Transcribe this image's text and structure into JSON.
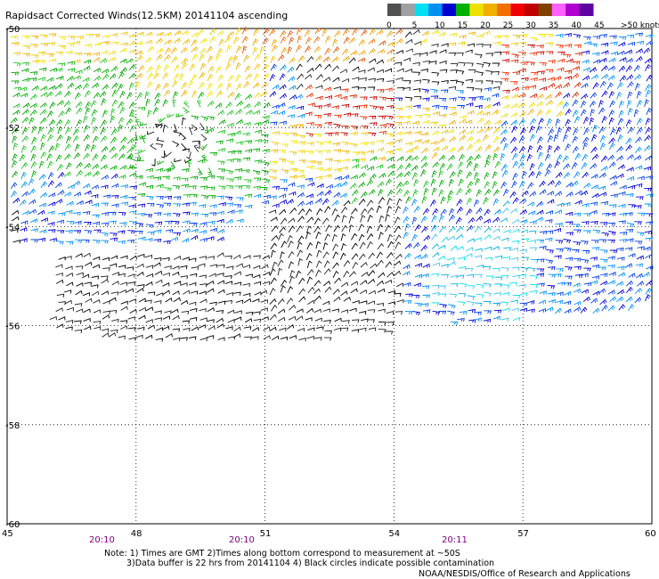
{
  "title": "Rapidsact Corrected Winds(12.5KM) 20141104 ascending",
  "legend": {
    "unit_label": ">50 knots",
    "ticks": [
      "0",
      "5",
      "10",
      "15",
      "20",
      "25",
      "30",
      "35",
      "40",
      "45"
    ],
    "colors": [
      "#505050",
      "#a0a0a0",
      "#00e0f0",
      "#0090f0",
      "#0000d0",
      "#00b000",
      "#f0e000",
      "#f0b000",
      "#f07000",
      "#f00000",
      "#c00000",
      "#804000",
      "#ff60ff",
      "#b000d0",
      "#6000a0"
    ]
  },
  "axes": {
    "x_ticks": [
      "45",
      "48",
      "51",
      "54",
      "57",
      "60"
    ],
    "y_ticks": [
      "-50",
      "-52",
      "-54",
      "-56",
      "-58",
      "-60"
    ]
  },
  "times": [
    "20:10",
    "20:10",
    "20:11"
  ],
  "notes": {
    "line1": "Note: 1) Times are GMT 2)Times along bottom correspond to measurement at ~50S",
    "line2": "3)Data buffer is 22 hrs from 20141104 4) Black circles indicate possible contamination",
    "credit": "NOAA/NESDIS/Office of Research and Applications"
  },
  "map_data": {
    "lon_range": [
      45,
      60
    ],
    "lat_range": [
      -60,
      -50
    ],
    "speed_bins_knots": [
      0,
      5,
      10,
      15,
      20,
      25,
      30,
      35,
      40,
      45,
      50
    ],
    "regions": [
      {
        "name": "north-yellow-band",
        "speed_class": "yellow"
      },
      {
        "name": "northwest-green-zone",
        "speed_class": "green"
      },
      {
        "name": "central-black-swath",
        "speed_class": "black"
      },
      {
        "name": "east-blue-cyan-zone",
        "speed_class": "blue-cyan"
      },
      {
        "name": "north-red-orange-patch",
        "speed_class": "red-orange"
      }
    ]
  }
}
